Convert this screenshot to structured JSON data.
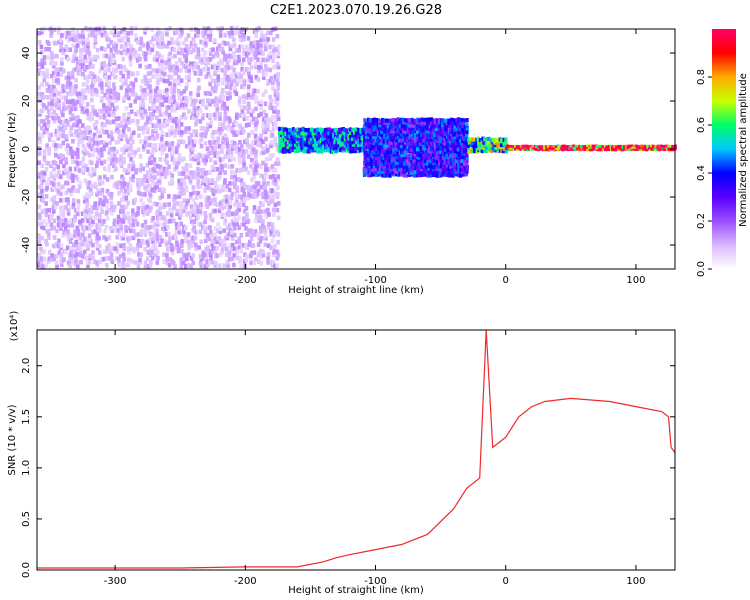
{
  "title": "C2E1.2023.070.19.26.G28",
  "colors": {
    "snr_line": "#ee2a2a",
    "colormap": [
      "#ffffff",
      "#d9b8ff",
      "#9a4dff",
      "#5a00ff",
      "#0000ff",
      "#00c8ff",
      "#00ff66",
      "#c8ff00",
      "#ffaa00",
      "#ff0000",
      "#ff0066"
    ]
  },
  "chart_data": [
    {
      "type": "heatmap",
      "xlabel": "Height of straight line (km)",
      "ylabel": "Frequency (Hz)",
      "xlim": [
        -360,
        130
      ],
      "ylim": [
        -50,
        50
      ],
      "xticks": [
        -300,
        -200,
        -100,
        0,
        100
      ],
      "xtick_labels": [
        "-300",
        "-200",
        "-100",
        "0",
        "100"
      ],
      "yticks": [
        -40,
        -20,
        0,
        20,
        40
      ],
      "ytick_labels": [
        "-40",
        "-20",
        "0",
        "20",
        "40"
      ],
      "colorbar": {
        "label": "Normalized spectral amplitude",
        "range": [
          0,
          1
        ],
        "ticks": [
          0.0,
          0.2,
          0.4,
          0.6,
          0.8
        ],
        "tick_labels": [
          "0.0",
          "0.2",
          "0.4",
          "0.6",
          "0.8"
        ]
      },
      "regions": [
        {
          "x_range": [
            -360,
            -175
          ],
          "freq_range": [
            -50,
            50
          ],
          "amplitude": 0.1
        },
        {
          "x_range": [
            -175,
            -110
          ],
          "freq_range": [
            -2,
            8
          ],
          "amplitude": 0.45
        },
        {
          "x_range": [
            -110,
            -30
          ],
          "freq_range": [
            -12,
            12
          ],
          "amplitude": 0.35
        },
        {
          "x_range": [
            -30,
            0
          ],
          "freq_range": [
            -2,
            4
          ],
          "amplitude": 0.6
        },
        {
          "x_range": [
            0,
            130
          ],
          "freq_range": [
            -1,
            1
          ],
          "amplitude": 0.95
        }
      ]
    },
    {
      "type": "line",
      "xlabel": "Height of straight line (km)",
      "ylabel": "SNR (10 * v/v)",
      "multiplier_label": "(x10⁴)",
      "xlim": [
        -360,
        130
      ],
      "ylim": [
        0,
        2.35
      ],
      "xticks": [
        -300,
        -200,
        -100,
        0,
        100
      ],
      "xtick_labels": [
        "-300",
        "-200",
        "-100",
        "0",
        "100"
      ],
      "yticks": [
        0.0,
        0.5,
        1.0,
        1.5,
        2.0
      ],
      "ytick_labels": [
        "0.0",
        "0.5",
        "1.0",
        "1.5",
        "2.0"
      ],
      "series": [
        {
          "x": [
            -360,
            -300,
            -250,
            -200,
            -160,
            -140,
            -130,
            -120,
            -100,
            -80,
            -60,
            -40,
            -30,
            -20,
            -15,
            -10,
            0,
            10,
            20,
            30,
            50,
            80,
            100,
            120,
            125,
            127,
            130
          ],
          "y": [
            0.02,
            0.02,
            0.02,
            0.03,
            0.03,
            0.08,
            0.12,
            0.15,
            0.2,
            0.25,
            0.35,
            0.6,
            0.8,
            0.9,
            2.35,
            1.2,
            1.3,
            1.5,
            1.6,
            1.65,
            1.68,
            1.65,
            1.6,
            1.55,
            1.5,
            1.2,
            1.15
          ]
        }
      ]
    }
  ]
}
